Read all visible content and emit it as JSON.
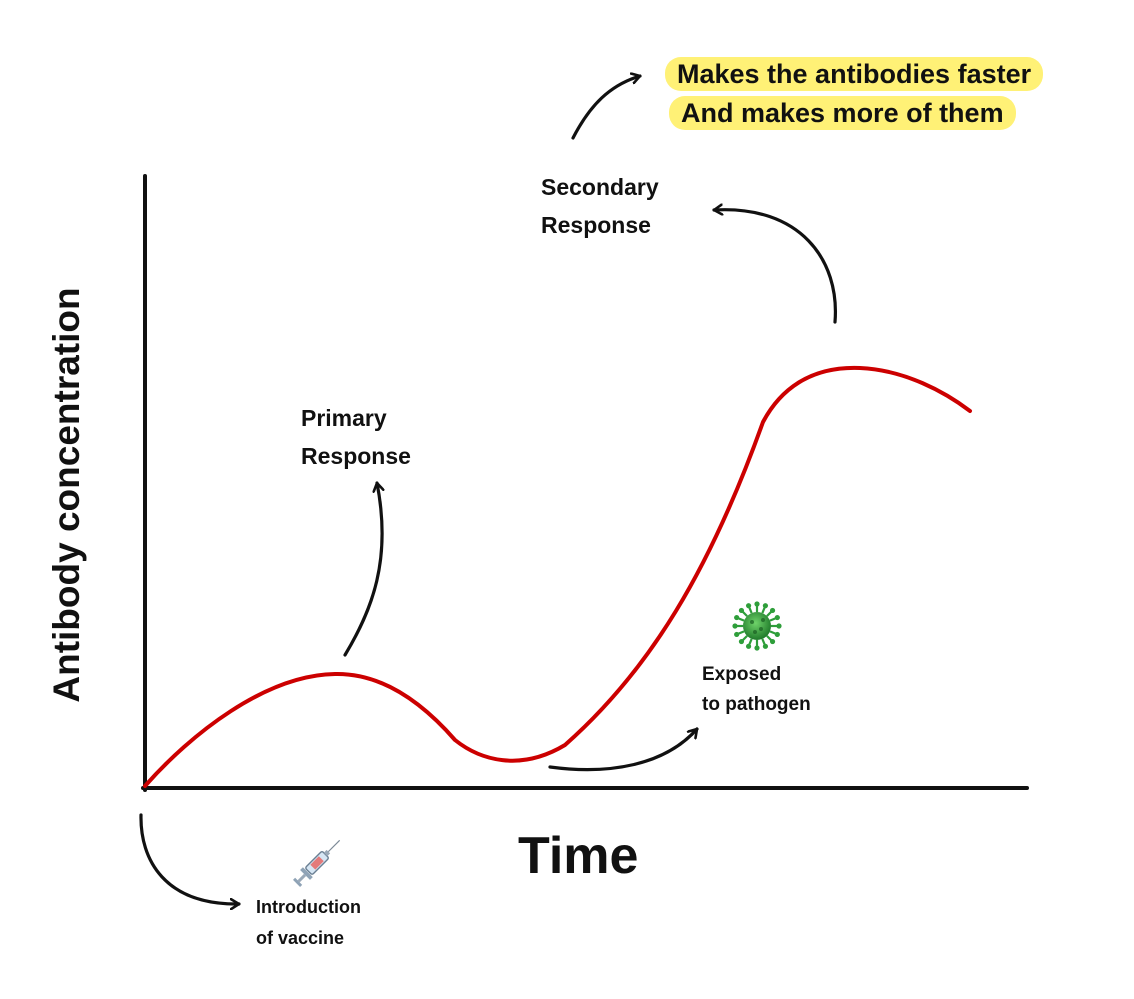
{
  "labels": {
    "y_axis": "Antibody concentration",
    "x_axis": "Time",
    "primary_line1": "Primary",
    "primary_line2": "Response",
    "secondary_line1": "Secondary",
    "secondary_line2": "Response",
    "exposed_line1": "Exposed",
    "exposed_line2": "to pathogen",
    "vaccine_line1": "Introduction",
    "vaccine_line2": "of vaccine",
    "note_line1": "Makes the antibodies faster",
    "note_line2": "And makes more of them"
  },
  "icons": {
    "syringe": "syringe-icon",
    "pathogen": "virus-icon"
  },
  "colors": {
    "curve": "#cc0000",
    "axis": "#111111",
    "highlight": "#fff176",
    "virus": "#2e9e3a"
  }
}
